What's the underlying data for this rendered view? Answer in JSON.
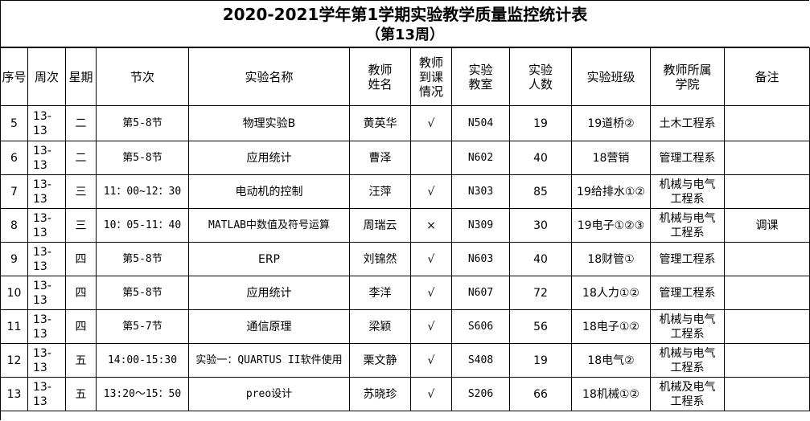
{
  "title": "2020-2021学年第1学期实验教学质量监控统计表",
  "subtitle": "（第13周）",
  "headers": [
    "序号",
    "周次",
    "星期",
    "节次",
    "实验名称",
    "教师\n姓名",
    "教师\n到课\n情况",
    "实验\n教室",
    "实验\n人数",
    "实验班级",
    "教师所属\n学院",
    "备注"
  ],
  "rows": [
    [
      "5",
      "13-13",
      "二",
      "第5-8节",
      "物理实验B",
      "黄英华",
      "√",
      "N504",
      "19",
      "19道桥②",
      "土木工程系",
      ""
    ],
    [
      "6",
      "13-13",
      "二",
      "第5-8节",
      "应用统计",
      "曹泽",
      "",
      "N602",
      "40",
      "18营销",
      "管理工程系",
      ""
    ],
    [
      "7",
      "13-13",
      "三",
      "11：00~12：30",
      "电动机的控制",
      "汪萍",
      "√",
      "N303",
      "85",
      "19给排水①②",
      "机械与电气\n工程系",
      ""
    ],
    [
      "8",
      "13-13",
      "三",
      "10：05-11：40",
      "MATLAB中数值及符号运算",
      "周瑞云",
      "×",
      "N309",
      "30",
      "19电子①②③",
      "机械与电气\n工程系",
      "调课"
    ],
    [
      "9",
      "13-13",
      "四",
      "第5-8节",
      "ERP",
      "刘锦然",
      "√",
      "N603",
      "40",
      "18财管①",
      "管理工程系",
      ""
    ],
    [
      "10",
      "13-13",
      "四",
      "第5-8节",
      "应用统计",
      "李洋",
      "√",
      "N607",
      "72",
      "18人力①②",
      "管理工程系",
      ""
    ],
    [
      "11",
      "13-13",
      "四",
      "第5-7节",
      "通信原理",
      "梁颖",
      "√",
      "S606",
      "56",
      "18电子①②",
      "机械与电气\n工程系",
      ""
    ],
    [
      "12",
      "13-13",
      "五",
      "14:00-15:30",
      "实验一：QUARTUS II软件使用",
      "栗文静",
      "√",
      "S408",
      "19",
      "18电气②",
      "机械与电气\n工程系",
      ""
    ],
    [
      "13",
      "13-13",
      "五",
      "13:20～15：50",
      "preo设计",
      "苏晓珍",
      "√",
      "S206",
      "66",
      "18机械①②",
      "机械及电气\n工程系",
      ""
    ]
  ]
}
